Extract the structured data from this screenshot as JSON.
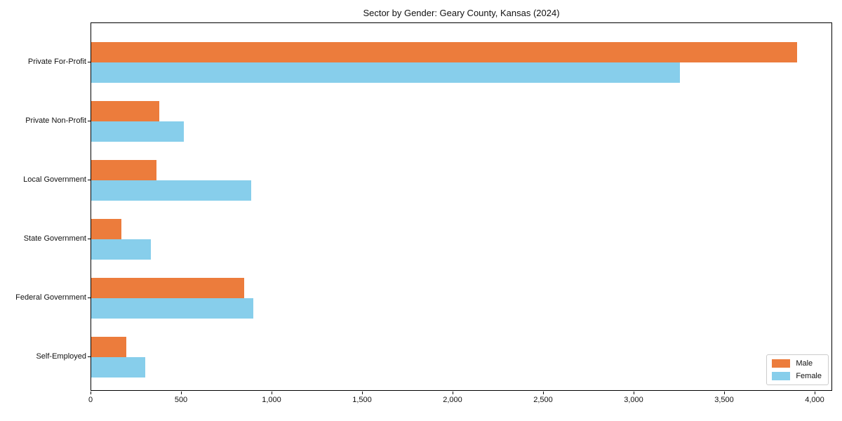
{
  "chart_data": {
    "type": "bar",
    "orientation": "horizontal",
    "title": "Sector by Gender: Geary County, Kansas (2024)",
    "categories": [
      "Private For-Profit",
      "Private Non-Profit",
      "Local Government",
      "State Government",
      "Federal Government",
      "Self-Employed"
    ],
    "series": [
      {
        "name": "Male",
        "color": "#EC7C3C",
        "values": [
          3900,
          375,
          360,
          165,
          845,
          195
        ]
      },
      {
        "name": "Female",
        "color": "#87CEEB",
        "values": [
          3250,
          510,
          885,
          330,
          895,
          300
        ]
      }
    ],
    "xlabel": "",
    "ylabel": "",
    "xlim": [
      0,
      4000
    ],
    "xtick_values": [
      0,
      500,
      1000,
      1500,
      2000,
      2500,
      3000,
      3500,
      4000
    ],
    "xtick_labels": [
      "0",
      "500",
      "1,000",
      "1,500",
      "2,000",
      "2,500",
      "3,000",
      "3,500",
      "4,000"
    ],
    "legend": {
      "position": "lower-right",
      "entries": [
        "Male",
        "Female"
      ]
    },
    "grid": false
  }
}
